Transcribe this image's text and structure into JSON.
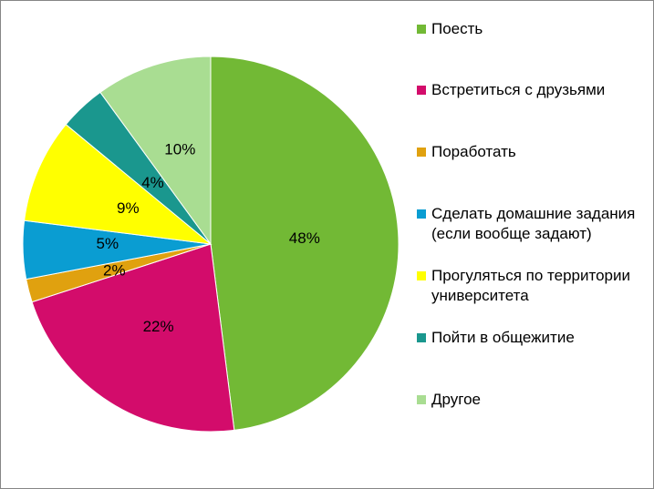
{
  "chart_data": {
    "type": "pie",
    "title": "",
    "legend_position": "right",
    "slices": [
      {
        "label": "Поесть",
        "value": 48,
        "value_label": "48%",
        "color": "#72B935"
      },
      {
        "label": "Встретиться с друзьями",
        "value": 22,
        "value_label": "22%",
        "color": "#D30C6B"
      },
      {
        "label": "Поработать",
        "value": 2,
        "value_label": "2%",
        "color": "#E0A10F"
      },
      {
        "label": "Сделать домашние задания (если вообще задают)",
        "value": 5,
        "value_label": "5%",
        "color": "#0A9DD2"
      },
      {
        "label": "Прогуляться по территории университета",
        "value": 9,
        "value_label": "9%",
        "color": "#FFFF00"
      },
      {
        "label": "Пойти в общежитие",
        "value": 4,
        "value_label": "4%",
        "color": "#1A978E"
      },
      {
        "label": "Другое",
        "value": 10,
        "value_label": "10%",
        "color": "#A9DD92"
      }
    ]
  }
}
